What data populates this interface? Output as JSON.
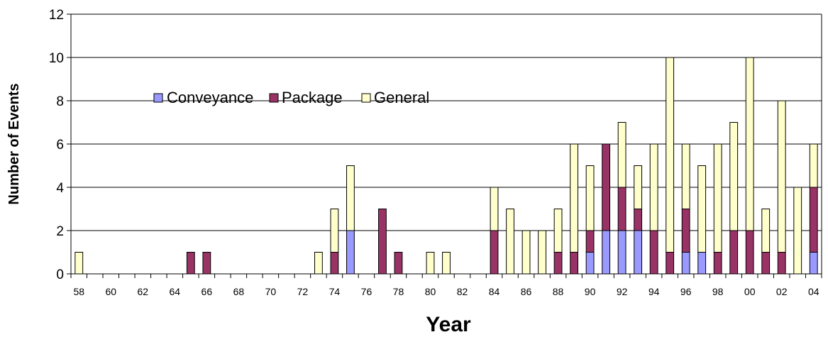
{
  "chart_data": {
    "type": "bar",
    "stacked": true,
    "title": "",
    "xlabel": "Year",
    "ylabel": "Number of Events",
    "ylim": [
      0,
      12
    ],
    "yticks": [
      "0",
      "2",
      "4",
      "6",
      "8",
      "10",
      "12"
    ],
    "grid": true,
    "legend_position": "upper-left inside plot",
    "categories": [
      "58",
      "59",
      "60",
      "61",
      "62",
      "63",
      "64",
      "65",
      "66",
      "67",
      "68",
      "69",
      "70",
      "71",
      "72",
      "73",
      "74",
      "75",
      "76",
      "77",
      "78",
      "79",
      "80",
      "81",
      "82",
      "83",
      "84",
      "85",
      "86",
      "87",
      "88",
      "89",
      "90",
      "91",
      "92",
      "93",
      "94",
      "95",
      "96",
      "97",
      "98",
      "99",
      "00",
      "01",
      "02",
      "03",
      "04"
    ],
    "xtick_labels": [
      "58",
      "60",
      "62",
      "64",
      "66",
      "68",
      "70",
      "72",
      "74",
      "76",
      "78",
      "80",
      "82",
      "84",
      "86",
      "88",
      "90",
      "92",
      "94",
      "96",
      "98",
      "00",
      "02",
      "04"
    ],
    "series": [
      {
        "name": "Conveyance",
        "color": "#9999ff",
        "values": [
          0,
          0,
          0,
          0,
          0,
          0,
          0,
          0,
          0,
          0,
          0,
          0,
          0,
          0,
          0,
          0,
          0,
          2,
          0,
          0,
          0,
          0,
          0,
          0,
          0,
          0,
          0,
          0,
          0,
          0,
          0,
          0,
          1,
          2,
          2,
          2,
          0,
          0,
          1,
          1,
          0,
          0,
          0,
          0,
          0,
          0,
          1
        ]
      },
      {
        "name": "Package",
        "color": "#993366",
        "values": [
          0,
          0,
          0,
          0,
          0,
          0,
          0,
          1,
          1,
          0,
          0,
          0,
          0,
          0,
          0,
          0,
          1,
          0,
          0,
          3,
          1,
          0,
          0,
          0,
          0,
          0,
          2,
          0,
          0,
          0,
          1,
          1,
          1,
          4,
          2,
          1,
          2,
          1,
          2,
          0,
          1,
          2,
          2,
          1,
          1,
          0,
          3
        ]
      },
      {
        "name": "General",
        "color": "#ffffcc",
        "values": [
          1,
          0,
          0,
          0,
          0,
          0,
          0,
          0,
          0,
          0,
          0,
          0,
          0,
          0,
          0,
          1,
          2,
          3,
          0,
          0,
          0,
          0,
          1,
          1,
          0,
          0,
          2,
          3,
          2,
          2,
          2,
          5,
          3,
          0,
          3,
          2,
          4,
          9,
          3,
          4,
          5,
          5,
          8,
          2,
          7,
          4,
          2
        ]
      }
    ]
  }
}
